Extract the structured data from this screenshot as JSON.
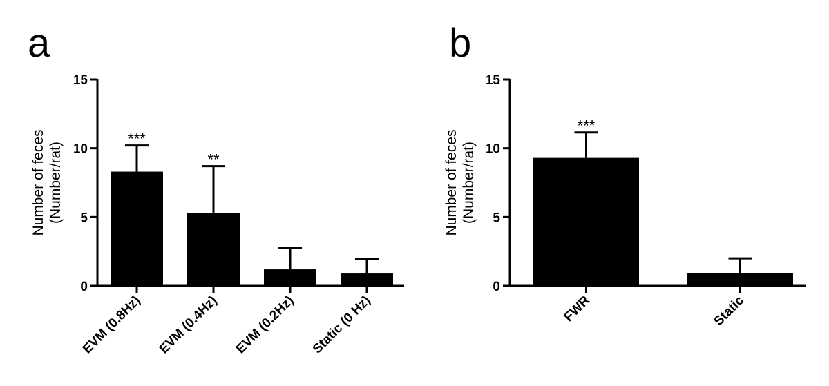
{
  "colors": {
    "bar": "#000000",
    "axis": "#000000",
    "background": "#ffffff"
  },
  "chart_data": [
    {
      "type": "bar",
      "panel": "a",
      "ylabel_lines": [
        "Number of feces",
        "(Number/rat)"
      ],
      "ylim": [
        0,
        15
      ],
      "yticks": [
        0,
        5,
        10,
        15
      ],
      "categories": [
        "EVM (0.8Hz)",
        "EVM (0.4Hz)",
        "EVM (0.2Hz)",
        "Static (0 Hz)"
      ],
      "values": [
        8.3,
        5.3,
        1.2,
        0.9
      ],
      "error_upper": [
        10.2,
        8.7,
        2.75,
        1.95
      ],
      "significance": [
        "***",
        "**",
        "",
        ""
      ],
      "grid": false,
      "legend": "none"
    },
    {
      "type": "bar",
      "panel": "b",
      "ylabel_lines": [
        "Number of feces",
        "(Number/rat)"
      ],
      "ylim": [
        0,
        15
      ],
      "yticks": [
        0,
        5,
        10,
        15
      ],
      "categories": [
        "FWR",
        "Static"
      ],
      "values": [
        9.3,
        0.95
      ],
      "error_upper": [
        11.15,
        2.0
      ],
      "significance": [
        "***",
        ""
      ],
      "grid": false,
      "legend": "none"
    }
  ]
}
